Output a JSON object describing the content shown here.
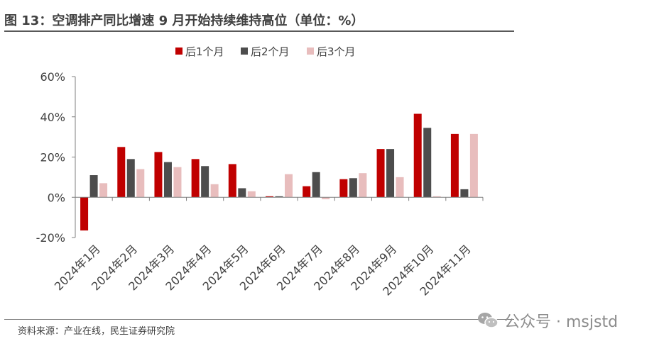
{
  "figure": {
    "title": "图 13：空调排产同比增速 9 月开始持续维持高位（单位：%）",
    "source": "资料来源：产业在线，民生证券研究院",
    "watermark": "公众号 · msjstd"
  },
  "chart_data": {
    "type": "bar",
    "categories": [
      "2024年1月",
      "2024年2月",
      "2024年3月",
      "2024年4月",
      "2024年5月",
      "2024年6月",
      "2024年7月",
      "2024年8月",
      "2024年9月",
      "2024年10月",
      "2024年11月"
    ],
    "series": [
      {
        "name": "后1个月",
        "color": "#c00000",
        "values": [
          -16.5,
          25,
          22.5,
          19,
          16.5,
          0.5,
          5.5,
          9,
          24,
          41.5,
          31.5
        ]
      },
      {
        "name": "后2个月",
        "color": "#4d4d4d",
        "values": [
          11,
          19,
          17.5,
          15.5,
          4.5,
          0.5,
          12.5,
          9.5,
          24,
          34.5,
          4
        ]
      },
      {
        "name": "后3个月",
        "color": "#e8bdbd",
        "values": [
          7,
          14,
          15,
          6.5,
          3,
          11.5,
          -1,
          12,
          10,
          0.5,
          31.5
        ]
      }
    ],
    "yticks": [
      -20,
      0,
      20,
      40,
      60
    ],
    "ytick_labels": [
      "-20%",
      "0%",
      "20%",
      "40%",
      "60%"
    ],
    "ylim": [
      -20,
      60
    ],
    "legend_position": "top-center",
    "grid": false
  }
}
